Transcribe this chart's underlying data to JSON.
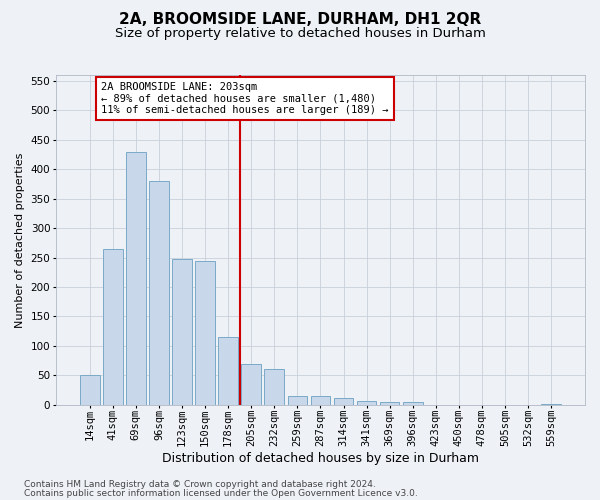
{
  "title1": "2A, BROOMSIDE LANE, DURHAM, DH1 2QR",
  "title2": "Size of property relative to detached houses in Durham",
  "xlabel": "Distribution of detached houses by size in Durham",
  "ylabel": "Number of detached properties",
  "categories": [
    "14sqm",
    "41sqm",
    "69sqm",
    "96sqm",
    "123sqm",
    "150sqm",
    "178sqm",
    "205sqm",
    "232sqm",
    "259sqm",
    "287sqm",
    "314sqm",
    "341sqm",
    "369sqm",
    "396sqm",
    "423sqm",
    "450sqm",
    "478sqm",
    "505sqm",
    "532sqm",
    "559sqm"
  ],
  "values": [
    50,
    265,
    430,
    380,
    248,
    245,
    115,
    70,
    60,
    15,
    15,
    12,
    6,
    5,
    5,
    0,
    0,
    0,
    0,
    0,
    2
  ],
  "bar_color": "#c8d8ea",
  "bar_edge_color": "#7aaac8",
  "grid_color": "#c8d0da",
  "background_color": "#eef2f7",
  "vline_index": 7,
  "vline_color": "#cc0000",
  "annotation_text": "2A BROOMSIDE LANE: 203sqm\n← 89% of detached houses are smaller (1,480)\n11% of semi-detached houses are larger (189) →",
  "annotation_box_facecolor": "#ffffff",
  "annotation_box_edgecolor": "#cc0000",
  "ylim": [
    0,
    560
  ],
  "yticks": [
    0,
    50,
    100,
    150,
    200,
    250,
    300,
    350,
    400,
    450,
    500,
    550
  ],
  "footer1": "Contains HM Land Registry data © Crown copyright and database right 2024.",
  "footer2": "Contains public sector information licensed under the Open Government Licence v3.0.",
  "title1_fontsize": 11,
  "title2_fontsize": 9.5,
  "xlabel_fontsize": 9,
  "ylabel_fontsize": 8,
  "tick_fontsize": 7.5,
  "annot_fontsize": 7.5,
  "footer_fontsize": 6.5
}
